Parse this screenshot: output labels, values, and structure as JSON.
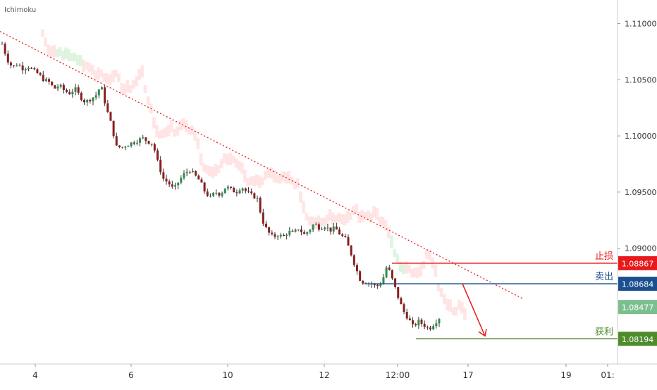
{
  "chart_data": {
    "type": "candlestick",
    "indicator": "Ichimoku",
    "x_ticks": [
      "4",
      "6",
      "10",
      "12",
      "12:00",
      "17",
      "19",
      "01:"
    ],
    "y_ticks": [
      "1.11000",
      "1.10500",
      "1.10000",
      "1.09500",
      "1.09000"
    ],
    "ylim": [
      1.0797,
      1.1121
    ],
    "current_price": {
      "value": 1.08477,
      "label": "1.08477"
    },
    "levels": [
      {
        "name": "止损",
        "value": 1.08867,
        "label": "1.08867",
        "color": "#e8191c"
      },
      {
        "name": "卖出",
        "value": 1.08684,
        "label": "1.08684",
        "color": "#1a4f8f"
      },
      {
        "name": "获利",
        "value": 1.08194,
        "label": "1.08194",
        "color": "#4e8b2a"
      }
    ],
    "trend_line": {
      "style": "dotted",
      "color": "#e8191c"
    },
    "projection_arrow": {
      "color": "#e8191c",
      "from": 1.08684,
      "to": 1.08194
    },
    "series_close": [
      1.1082,
      1.1068,
      1.1061,
      1.1064,
      1.106,
      1.1062,
      1.1058,
      1.1055,
      1.105,
      1.1048,
      1.1042,
      1.1045,
      1.104,
      1.1038,
      1.1042,
      1.1035,
      1.103,
      1.1033,
      1.1036,
      1.1045,
      1.1025,
      1.101,
      1.099,
      1.099,
      1.0992,
      1.0994,
      1.0996,
      1.0998,
      1.0995,
      1.0993,
      1.0975,
      1.0962,
      1.0958,
      1.0952,
      1.096,
      1.0966,
      1.097,
      1.0965,
      1.096,
      1.095,
      1.0945,
      1.095,
      1.0948,
      1.0955,
      1.0952,
      1.095,
      1.0955,
      1.095,
      1.0947,
      1.0945,
      1.0925,
      1.0915,
      1.091,
      1.0912,
      1.091,
      1.0915,
      1.0913,
      1.0918,
      1.0912,
      1.0916,
      1.0922,
      1.0918,
      1.092,
      1.0916,
      1.0918,
      1.0912,
      1.0908,
      1.0896,
      1.0882,
      1.087,
      1.087,
      1.0868,
      1.0866,
      1.087,
      1.0885,
      1.0872,
      1.0858,
      1.0845,
      1.0838,
      1.083,
      1.0835,
      1.0832,
      1.0828,
      1.0833,
      1.0838
    ]
  },
  "ichimoku_label": "Ichimoku"
}
